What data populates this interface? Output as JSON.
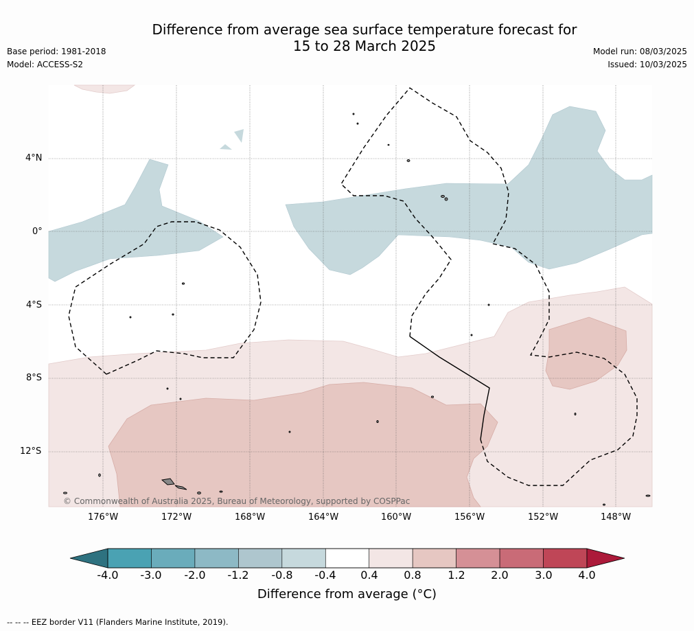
{
  "title": {
    "line1": "Difference from average sea surface temperature forecast for",
    "line2": "15 to 28 March 2025"
  },
  "meta_left": {
    "base_period": "Base period: 1981-2018",
    "model": "Model: ACCESS-S2"
  },
  "meta_right": {
    "model_run": "Model run: 08/03/2025",
    "issued": "Issued: 10/03/2025"
  },
  "map": {
    "lat_labels": [
      "4°N",
      "0°",
      "4°S",
      "8°S",
      "12°S"
    ],
    "lon_labels": [
      "176°W",
      "172°W",
      "168°W",
      "164°W",
      "160°W",
      "156°W",
      "152°W",
      "148°W"
    ],
    "copyright": "© Commonwealth of Australia 2025, Bureau of Meteorology, supported by COSPPac"
  },
  "colorbar": {
    "tick_labels": [
      "-4.0",
      "-3.0",
      "-2.0",
      "-1.2",
      "-0.8",
      "-0.4",
      "0.4",
      "0.8",
      "1.2",
      "2.0",
      "3.0",
      "4.0"
    ],
    "colors": [
      "#2e7280",
      "#4aa2b3",
      "#6aacbb",
      "#8db9c5",
      "#aec6ce",
      "#c6d9dd",
      "#ffffff",
      "#f3e6e5",
      "#e6c7c2",
      "#d59096",
      "#c96b77",
      "#bf4657",
      "#ac1a3a"
    ],
    "title": "Difference from average (°C)"
  },
  "footnote": "--  --  -- EEZ border V11 (Flanders Marine Institute, 2019)."
}
